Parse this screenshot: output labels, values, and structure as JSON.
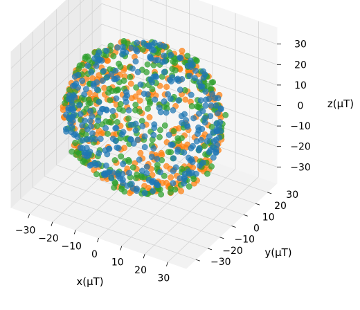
{
  "chart_data": {
    "type": "scatter",
    "projection": "3d",
    "xlabel": "x(μT)",
    "ylabel": "y(μT)",
    "zlabel": "z(μT)",
    "xlim": [
      -38,
      38
    ],
    "ylim": [
      -38,
      38
    ],
    "zlim": [
      -38,
      38
    ],
    "x_ticks": [
      -30,
      -20,
      -10,
      0,
      10,
      20,
      30
    ],
    "y_ticks": [
      -30,
      -20,
      -10,
      0,
      10,
      20,
      30
    ],
    "z_ticks": [
      -30,
      -20,
      -10,
      0,
      10,
      20,
      30
    ],
    "x_tick_labels": [
      "−30",
      "−20",
      "−10",
      "0",
      "10",
      "20",
      "30"
    ],
    "y_tick_labels": [
      "−30",
      "−20",
      "−10",
      "0",
      "10",
      "20",
      "30"
    ],
    "z_tick_labels": [
      "−30",
      "−20",
      "−10",
      "0",
      "10",
      "20",
      "30"
    ],
    "grid": true,
    "series_shape": "spherical shell of radius ~30 μT centred at origin",
    "series": [
      {
        "color": "#ff7f0e",
        "center": [
          0,
          0,
          0
        ],
        "radius": 31
      },
      {
        "color": "#2ca02c",
        "center": [
          0,
          0,
          0
        ],
        "radius": 31
      },
      {
        "color": "#1f77b4",
        "center": [
          0,
          0,
          0
        ],
        "radius": 30
      }
    ],
    "series_colors": [
      "#ff7f0e",
      "#2ca02c",
      "#1f77b4"
    ]
  }
}
